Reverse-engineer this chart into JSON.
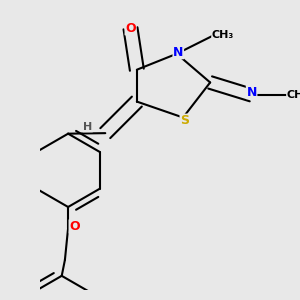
{
  "bg_color": "#e8e8e8",
  "bond_color": "#000000",
  "bond_width": 1.5,
  "atom_colors": {
    "O": "#ff0000",
    "N": "#0000ff",
    "S": "#ccaa00",
    "F": "#cc00cc",
    "H": "#555555",
    "C": "#000000"
  },
  "font_size": 9,
  "fig_width": 3.0,
  "fig_height": 3.0,
  "dpi": 100
}
